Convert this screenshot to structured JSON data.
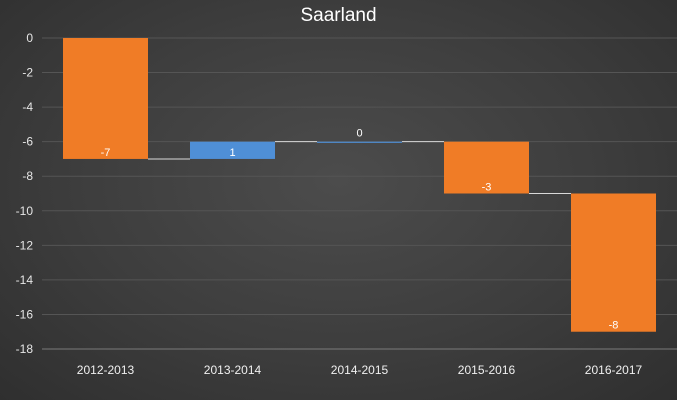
{
  "chart_data": {
    "type": "waterfall",
    "title": "Saarland",
    "categories": [
      "2012-2013",
      "2013-2014",
      "2014-2015",
      "2015-2016",
      "2016-2017"
    ],
    "values": [
      -7,
      1,
      0,
      -3,
      -8
    ],
    "data_labels": [
      "-7",
      "1",
      "0",
      "-3",
      "-8"
    ],
    "ylim": [
      -18,
      0
    ],
    "yticks": [
      0,
      -2,
      -4,
      -6,
      -8,
      -10,
      -12,
      -14,
      -16,
      -18
    ],
    "ytick_labels": [
      "0",
      "-2",
      "-4",
      "-6",
      "-8",
      "-10",
      "-12",
      "-14",
      "-16",
      "-18"
    ],
    "grid": true,
    "colors": {
      "decrease": "#f07c26",
      "increase": "#4f8fd6",
      "connector": "#d9d9d9"
    }
  }
}
